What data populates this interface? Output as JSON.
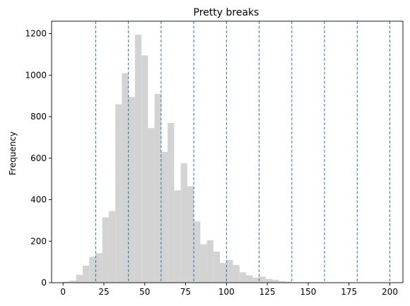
{
  "chart_data": {
    "type": "bar",
    "title": "Pretty breaks",
    "xlabel": "",
    "ylabel": "Frequency",
    "xlim": [
      -7,
      208
    ],
    "ylim": [
      0,
      1260
    ],
    "bin_width": 4,
    "bins": [
      {
        "x0": 0,
        "x1": 4,
        "count": 5
      },
      {
        "x0": 4,
        "x1": 8,
        "count": 10
      },
      {
        "x0": 8,
        "x1": 12,
        "count": 38
      },
      {
        "x0": 12,
        "x1": 16,
        "count": 82
      },
      {
        "x0": 16,
        "x1": 20,
        "count": 125
      },
      {
        "x0": 20,
        "x1": 24,
        "count": 142
      },
      {
        "x0": 24,
        "x1": 28,
        "count": 315
      },
      {
        "x0": 28,
        "x1": 32,
        "count": 345
      },
      {
        "x0": 32,
        "x1": 36,
        "count": 860
      },
      {
        "x0": 36,
        "x1": 40,
        "count": 1010
      },
      {
        "x0": 40,
        "x1": 44,
        "count": 895
      },
      {
        "x0": 44,
        "x1": 48,
        "count": 1195
      },
      {
        "x0": 48,
        "x1": 52,
        "count": 1095
      },
      {
        "x0": 52,
        "x1": 56,
        "count": 745
      },
      {
        "x0": 56,
        "x1": 60,
        "count": 910
      },
      {
        "x0": 60,
        "x1": 64,
        "count": 630
      },
      {
        "x0": 64,
        "x1": 68,
        "count": 770
      },
      {
        "x0": 68,
        "x1": 72,
        "count": 445
      },
      {
        "x0": 72,
        "x1": 76,
        "count": 575
      },
      {
        "x0": 76,
        "x1": 80,
        "count": 465
      },
      {
        "x0": 80,
        "x1": 84,
        "count": 295
      },
      {
        "x0": 84,
        "x1": 88,
        "count": 185
      },
      {
        "x0": 88,
        "x1": 92,
        "count": 205
      },
      {
        "x0": 92,
        "x1": 96,
        "count": 150
      },
      {
        "x0": 96,
        "x1": 100,
        "count": 95
      },
      {
        "x0": 100,
        "x1": 104,
        "count": 110
      },
      {
        "x0": 104,
        "x1": 108,
        "count": 85
      },
      {
        "x0": 108,
        "x1": 112,
        "count": 50
      },
      {
        "x0": 112,
        "x1": 116,
        "count": 35
      },
      {
        "x0": 116,
        "x1": 120,
        "count": 25
      },
      {
        "x0": 120,
        "x1": 124,
        "count": 30
      },
      {
        "x0": 124,
        "x1": 128,
        "count": 18
      },
      {
        "x0": 128,
        "x1": 132,
        "count": 14
      },
      {
        "x0": 132,
        "x1": 136,
        "count": 8
      },
      {
        "x0": 136,
        "x1": 140,
        "count": 5
      }
    ],
    "vlines": [
      20,
      40,
      60,
      80,
      100,
      120,
      140,
      160,
      180,
      200
    ],
    "xticks": [
      0,
      25,
      50,
      75,
      100,
      125,
      150,
      175,
      200
    ],
    "yticks": [
      0,
      200,
      400,
      600,
      800,
      1000,
      1200
    ],
    "grid": false,
    "colors": {
      "bar": "#d3d3d3",
      "vline": "#1f77b4",
      "axis": "#000000"
    }
  }
}
